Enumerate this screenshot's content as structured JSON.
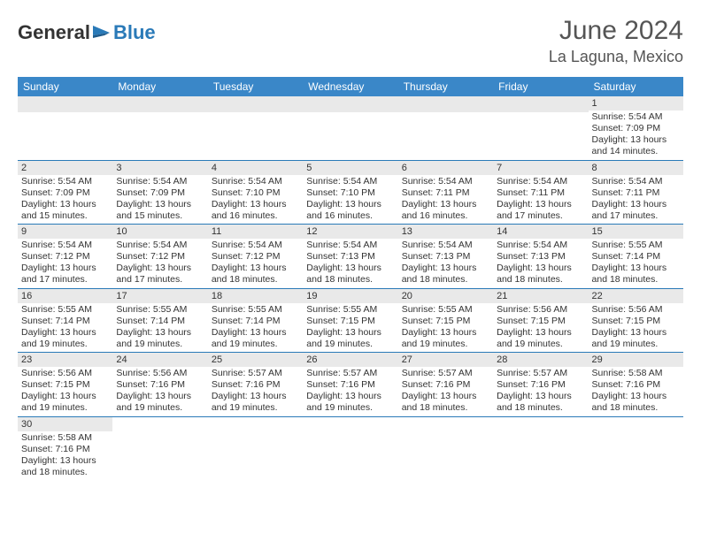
{
  "brand": {
    "text_general": "General",
    "text_blue": "Blue",
    "icon_color": "#2a7ab8"
  },
  "header": {
    "title": "June 2024",
    "subtitle": "La Laguna, Mexico"
  },
  "colors": {
    "header_bg": "#3a87c8",
    "header_text": "#ffffff",
    "day_strip_bg": "#e9e9e9",
    "cell_border": "#2a7ab8",
    "body_text": "#333333",
    "title_text": "#555555"
  },
  "typography": {
    "title_fontsize": 30,
    "subtitle_fontsize": 18,
    "dayheader_fontsize": 12,
    "daynum_fontsize": 11,
    "dayinfo_fontsize": 10.5
  },
  "days_of_week": [
    "Sunday",
    "Monday",
    "Tuesday",
    "Wednesday",
    "Thursday",
    "Friday",
    "Saturday"
  ],
  "weeks": [
    [
      null,
      null,
      null,
      null,
      null,
      null,
      {
        "n": "1",
        "sr": "Sunrise: 5:54 AM",
        "ss": "Sunset: 7:09 PM",
        "dl1": "Daylight: 13 hours",
        "dl2": "and 14 minutes."
      }
    ],
    [
      {
        "n": "2",
        "sr": "Sunrise: 5:54 AM",
        "ss": "Sunset: 7:09 PM",
        "dl1": "Daylight: 13 hours",
        "dl2": "and 15 minutes."
      },
      {
        "n": "3",
        "sr": "Sunrise: 5:54 AM",
        "ss": "Sunset: 7:09 PM",
        "dl1": "Daylight: 13 hours",
        "dl2": "and 15 minutes."
      },
      {
        "n": "4",
        "sr": "Sunrise: 5:54 AM",
        "ss": "Sunset: 7:10 PM",
        "dl1": "Daylight: 13 hours",
        "dl2": "and 16 minutes."
      },
      {
        "n": "5",
        "sr": "Sunrise: 5:54 AM",
        "ss": "Sunset: 7:10 PM",
        "dl1": "Daylight: 13 hours",
        "dl2": "and 16 minutes."
      },
      {
        "n": "6",
        "sr": "Sunrise: 5:54 AM",
        "ss": "Sunset: 7:11 PM",
        "dl1": "Daylight: 13 hours",
        "dl2": "and 16 minutes."
      },
      {
        "n": "7",
        "sr": "Sunrise: 5:54 AM",
        "ss": "Sunset: 7:11 PM",
        "dl1": "Daylight: 13 hours",
        "dl2": "and 17 minutes."
      },
      {
        "n": "8",
        "sr": "Sunrise: 5:54 AM",
        "ss": "Sunset: 7:11 PM",
        "dl1": "Daylight: 13 hours",
        "dl2": "and 17 minutes."
      }
    ],
    [
      {
        "n": "9",
        "sr": "Sunrise: 5:54 AM",
        "ss": "Sunset: 7:12 PM",
        "dl1": "Daylight: 13 hours",
        "dl2": "and 17 minutes."
      },
      {
        "n": "10",
        "sr": "Sunrise: 5:54 AM",
        "ss": "Sunset: 7:12 PM",
        "dl1": "Daylight: 13 hours",
        "dl2": "and 17 minutes."
      },
      {
        "n": "11",
        "sr": "Sunrise: 5:54 AM",
        "ss": "Sunset: 7:12 PM",
        "dl1": "Daylight: 13 hours",
        "dl2": "and 18 minutes."
      },
      {
        "n": "12",
        "sr": "Sunrise: 5:54 AM",
        "ss": "Sunset: 7:13 PM",
        "dl1": "Daylight: 13 hours",
        "dl2": "and 18 minutes."
      },
      {
        "n": "13",
        "sr": "Sunrise: 5:54 AM",
        "ss": "Sunset: 7:13 PM",
        "dl1": "Daylight: 13 hours",
        "dl2": "and 18 minutes."
      },
      {
        "n": "14",
        "sr": "Sunrise: 5:54 AM",
        "ss": "Sunset: 7:13 PM",
        "dl1": "Daylight: 13 hours",
        "dl2": "and 18 minutes."
      },
      {
        "n": "15",
        "sr": "Sunrise: 5:55 AM",
        "ss": "Sunset: 7:14 PM",
        "dl1": "Daylight: 13 hours",
        "dl2": "and 18 minutes."
      }
    ],
    [
      {
        "n": "16",
        "sr": "Sunrise: 5:55 AM",
        "ss": "Sunset: 7:14 PM",
        "dl1": "Daylight: 13 hours",
        "dl2": "and 19 minutes."
      },
      {
        "n": "17",
        "sr": "Sunrise: 5:55 AM",
        "ss": "Sunset: 7:14 PM",
        "dl1": "Daylight: 13 hours",
        "dl2": "and 19 minutes."
      },
      {
        "n": "18",
        "sr": "Sunrise: 5:55 AM",
        "ss": "Sunset: 7:14 PM",
        "dl1": "Daylight: 13 hours",
        "dl2": "and 19 minutes."
      },
      {
        "n": "19",
        "sr": "Sunrise: 5:55 AM",
        "ss": "Sunset: 7:15 PM",
        "dl1": "Daylight: 13 hours",
        "dl2": "and 19 minutes."
      },
      {
        "n": "20",
        "sr": "Sunrise: 5:55 AM",
        "ss": "Sunset: 7:15 PM",
        "dl1": "Daylight: 13 hours",
        "dl2": "and 19 minutes."
      },
      {
        "n": "21",
        "sr": "Sunrise: 5:56 AM",
        "ss": "Sunset: 7:15 PM",
        "dl1": "Daylight: 13 hours",
        "dl2": "and 19 minutes."
      },
      {
        "n": "22",
        "sr": "Sunrise: 5:56 AM",
        "ss": "Sunset: 7:15 PM",
        "dl1": "Daylight: 13 hours",
        "dl2": "and 19 minutes."
      }
    ],
    [
      {
        "n": "23",
        "sr": "Sunrise: 5:56 AM",
        "ss": "Sunset: 7:15 PM",
        "dl1": "Daylight: 13 hours",
        "dl2": "and 19 minutes."
      },
      {
        "n": "24",
        "sr": "Sunrise: 5:56 AM",
        "ss": "Sunset: 7:16 PM",
        "dl1": "Daylight: 13 hours",
        "dl2": "and 19 minutes."
      },
      {
        "n": "25",
        "sr": "Sunrise: 5:57 AM",
        "ss": "Sunset: 7:16 PM",
        "dl1": "Daylight: 13 hours",
        "dl2": "and 19 minutes."
      },
      {
        "n": "26",
        "sr": "Sunrise: 5:57 AM",
        "ss": "Sunset: 7:16 PM",
        "dl1": "Daylight: 13 hours",
        "dl2": "and 19 minutes."
      },
      {
        "n": "27",
        "sr": "Sunrise: 5:57 AM",
        "ss": "Sunset: 7:16 PM",
        "dl1": "Daylight: 13 hours",
        "dl2": "and 18 minutes."
      },
      {
        "n": "28",
        "sr": "Sunrise: 5:57 AM",
        "ss": "Sunset: 7:16 PM",
        "dl1": "Daylight: 13 hours",
        "dl2": "and 18 minutes."
      },
      {
        "n": "29",
        "sr": "Sunrise: 5:58 AM",
        "ss": "Sunset: 7:16 PM",
        "dl1": "Daylight: 13 hours",
        "dl2": "and 18 minutes."
      }
    ],
    [
      {
        "n": "30",
        "sr": "Sunrise: 5:58 AM",
        "ss": "Sunset: 7:16 PM",
        "dl1": "Daylight: 13 hours",
        "dl2": "and 18 minutes."
      },
      null,
      null,
      null,
      null,
      null,
      null
    ]
  ]
}
